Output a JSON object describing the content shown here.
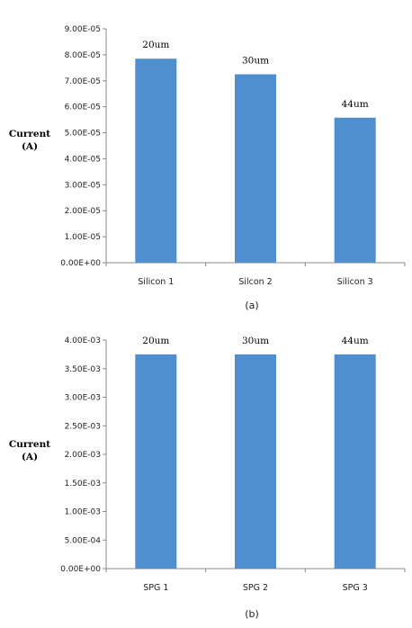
{
  "chart_data": [
    {
      "type": "bar",
      "categories": [
        "Silicon 1",
        "Silcon 2",
        "Silicon 3"
      ],
      "values": [
        7.85e-05,
        7.25e-05,
        5.58e-05
      ],
      "data_labels": [
        "20um",
        "30um",
        "44um"
      ],
      "ylabel": [
        "Current",
        "(A)"
      ],
      "ylim": [
        0,
        9e-05
      ],
      "yticks": [
        "0.00E+00",
        "1.00E-05",
        "2.00E-05",
        "3.00E-05",
        "4.00E-05",
        "5.00E-05",
        "6.00E-05",
        "7.00E-05",
        "8.00E-05",
        "9.00E-05"
      ],
      "caption": "(a)",
      "bar_color": "#4f8fcf",
      "grid": false
    },
    {
      "type": "bar",
      "categories": [
        "SPG 1",
        "SPG 2",
        "SPG 3"
      ],
      "values": [
        0.00375,
        0.00375,
        0.00375
      ],
      "data_labels": [
        "20um",
        "30um",
        "44um"
      ],
      "ylabel": [
        "Current",
        "(A)"
      ],
      "ylim": [
        0,
        0.004
      ],
      "yticks": [
        "0.00E+00",
        "5.00E-04",
        "1.00E-03",
        "1.50E-03",
        "2.00E-03",
        "2.50E-03",
        "3.00E-03",
        "3.50E-03",
        "4.00E-03"
      ],
      "caption": "(b)",
      "bar_color": "#4f8fcf",
      "grid": false
    }
  ]
}
